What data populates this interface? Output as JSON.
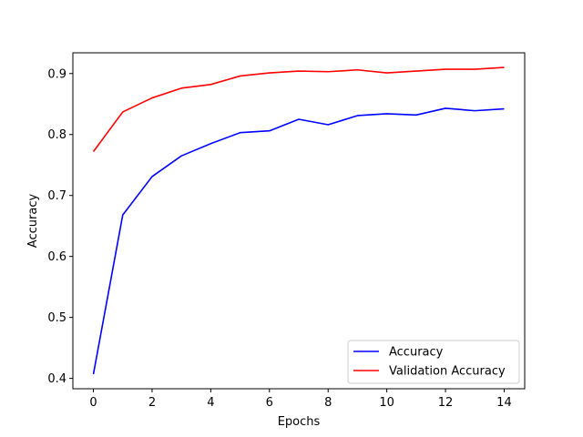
{
  "chart_data": {
    "type": "line",
    "title": "",
    "xlabel": "Epochs",
    "ylabel": "Accuracy",
    "xlim": [
      -0.7,
      14.7
    ],
    "ylim": [
      0.383,
      0.934
    ],
    "xticks": [
      0,
      2,
      4,
      6,
      8,
      10,
      12,
      14
    ],
    "yticks": [
      0.4,
      0.5,
      0.6,
      0.7,
      0.8,
      0.9
    ],
    "grid": false,
    "legend_position": "lower-right",
    "x": [
      0,
      1,
      2,
      3,
      4,
      5,
      6,
      7,
      8,
      9,
      10,
      11,
      12,
      13,
      14
    ],
    "series": [
      {
        "name": "Accuracy",
        "color": "#0000ff",
        "values": [
          0.407,
          0.668,
          0.731,
          0.765,
          0.785,
          0.803,
          0.806,
          0.825,
          0.816,
          0.831,
          0.834,
          0.832,
          0.843,
          0.839,
          0.842
        ]
      },
      {
        "name": "Validation Accuracy",
        "color": "#ff0000",
        "values": [
          0.772,
          0.837,
          0.86,
          0.876,
          0.882,
          0.896,
          0.901,
          0.904,
          0.903,
          0.906,
          0.901,
          0.904,
          0.907,
          0.907,
          0.91
        ]
      }
    ]
  }
}
